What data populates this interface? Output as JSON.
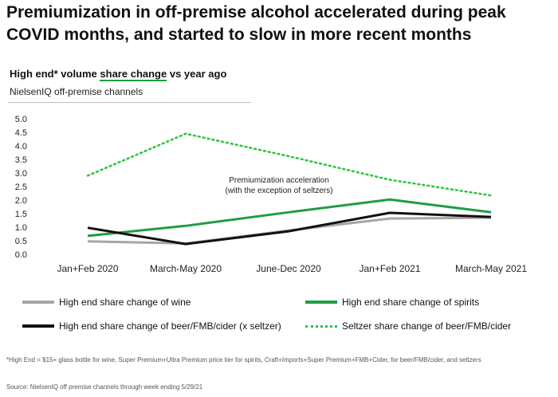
{
  "header": {
    "title": "Premiumization in off-premise alcohol accelerated during peak COVID months, and started to slow in more recent months",
    "subtitle_pre": "High end* volume ",
    "subtitle_hl": "share change",
    "subtitle_post": " vs year ago",
    "subtitle2": "NielsenIQ off-premise channels"
  },
  "chart_data": {
    "type": "line",
    "categories": [
      "Jan+Feb 2020",
      "March-May 2020",
      "June-Dec 2020",
      "Jan+Feb 2021",
      "March-May 2021"
    ],
    "ylim": [
      0,
      5
    ],
    "yticks": [
      "0.0",
      "0.5",
      "1.0",
      "1.5",
      "2.0",
      "2.5",
      "3.0",
      "3.5",
      "4.0",
      "4.5",
      "5.0"
    ],
    "ytick_values": [
      0,
      0.5,
      1,
      1.5,
      2,
      2.5,
      3,
      3.5,
      4,
      4.5,
      5
    ],
    "grid": false,
    "series": [
      {
        "name": "High end share change of wine",
        "values": [
          0.48,
          0.4,
          0.88,
          1.32,
          1.35
        ],
        "color": "#a6a6a6",
        "style": "solid"
      },
      {
        "name": "High end share change of spirits",
        "values": [
          0.68,
          1.05,
          1.55,
          2.02,
          1.55
        ],
        "color": "#1e9e44",
        "style": "solid"
      },
      {
        "name": "High end share change of beer/FMB/cider (x seltzer)",
        "values": [
          0.98,
          0.38,
          0.85,
          1.53,
          1.38
        ],
        "color": "#111111",
        "style": "solid"
      },
      {
        "name": "Seltzer share change of beer/FMB/cider",
        "values": [
          2.9,
          4.45,
          3.62,
          2.75,
          2.17
        ],
        "color": "#2cc53b",
        "style": "dotted"
      }
    ],
    "annotation": [
      "Premiumization acceleration",
      "(with the exception of seltzers)"
    ],
    "legend_position": "bottom"
  },
  "footnote": "*High End = $15+ glass bottle for wine, Super Premium+Ultra Premium price tier for spirits, Craft+Imports+Super Premium+FMB+Cider, for beer/FMB/cider, and seltzers",
  "source": "Source: NielsenIQ off premise channels through week ending 5/29/21"
}
